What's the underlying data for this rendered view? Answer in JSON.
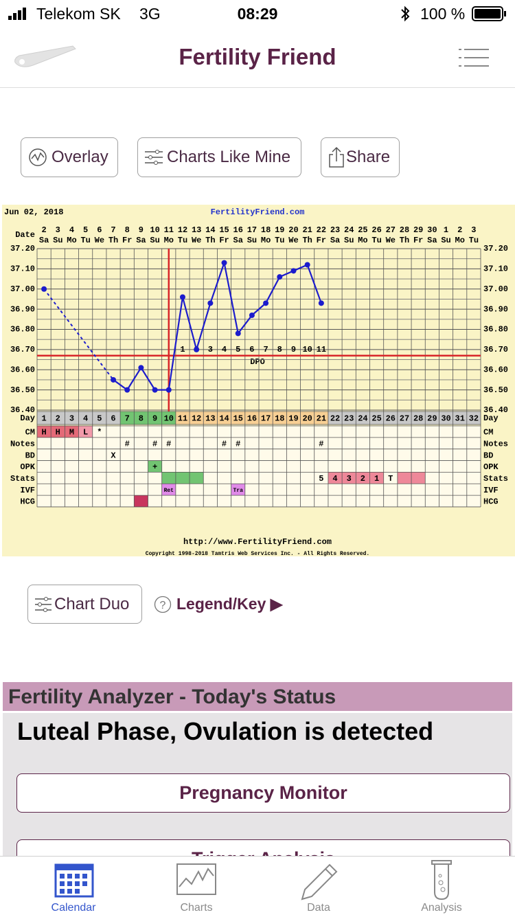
{
  "status_bar": {
    "carrier": "Telekom SK",
    "network": "3G",
    "time": "08:29",
    "battery": "100 %"
  },
  "header": {
    "title": "Fertility Friend"
  },
  "toolbar": {
    "buttons": [
      "Overlay",
      "Charts Like Mine",
      "Share"
    ]
  },
  "chart_data": {
    "type": "line",
    "date_label": "Jun 02, 2018",
    "site": "FertilityFriend.com",
    "date_row_label": "Date",
    "day_row_label": "Day",
    "categories": [
      1,
      2,
      3,
      4,
      5,
      6,
      7,
      8,
      9,
      10,
      11,
      12,
      13,
      14,
      15,
      16,
      17,
      18,
      19,
      20,
      21,
      22,
      23,
      24,
      25,
      26,
      27,
      28,
      29,
      30,
      31,
      32
    ],
    "dates": [
      2,
      3,
      4,
      5,
      6,
      7,
      8,
      9,
      10,
      11,
      12,
      13,
      14,
      15,
      16,
      17,
      18,
      19,
      20,
      21,
      22,
      23,
      24,
      25,
      26,
      27,
      28,
      29,
      30,
      1,
      2,
      3
    ],
    "weekdays": [
      "Sa",
      "Su",
      "Mo",
      "Tu",
      "We",
      "Th",
      "Fr",
      "Sa",
      "Su",
      "Mo",
      "Tu",
      "We",
      "Th",
      "Fr",
      "Sa",
      "Su",
      "Mo",
      "Tu",
      "We",
      "Th",
      "Fr",
      "Sa",
      "Su",
      "Mo",
      "Tu",
      "We",
      "Th",
      "Fr",
      "Sa",
      "Su",
      "Mo",
      "Tu"
    ],
    "values": [
      37.0,
      null,
      null,
      null,
      null,
      36.55,
      36.5,
      36.61,
      36.5,
      36.5,
      36.96,
      36.7,
      36.93,
      37.13,
      36.78,
      36.87,
      36.93,
      37.06,
      37.09,
      37.12,
      36.93,
      null,
      null,
      null,
      null,
      null,
      null,
      null,
      null,
      null,
      null,
      null
    ],
    "color": "#1c1ccc",
    "ylim": [
      36.4,
      37.2
    ],
    "yticks": [
      {
        "value": 36.4,
        "label": "36.40"
      },
      {
        "value": 36.5,
        "label": "36.50"
      },
      {
        "value": 36.6,
        "label": "36.60"
      },
      {
        "value": 36.7,
        "label": "36.70"
      },
      {
        "value": 36.8,
        "label": "36.80"
      },
      {
        "value": 36.9,
        "label": "36.90"
      },
      {
        "value": 37.0,
        "label": "37.00"
      },
      {
        "value": 37.1,
        "label": "37.10"
      },
      {
        "value": 37.2,
        "label": "37.20"
      }
    ],
    "grid": true,
    "coverline": 36.67,
    "ovulation_day": 10,
    "marker_line_color": "#d8262a",
    "dpo": [
      null,
      null,
      null,
      null,
      null,
      null,
      null,
      null,
      null,
      null,
      1,
      2,
      3,
      4,
      5,
      6,
      7,
      8,
      9,
      10,
      11,
      null,
      null,
      null,
      null,
      null,
      null,
      null,
      null,
      null,
      null,
      null
    ],
    "dpo_label": "DPO",
    "day_colors": [
      "#c8c8c8",
      "#c8c8c8",
      "#c8c8c8",
      "#c8c8c8",
      "#c8c8c8",
      "#c8c8c8",
      "#72c472",
      "#72c472",
      "#72c472",
      "#72c472",
      "#f7cf94",
      "#f7cf94",
      "#f7cf94",
      "#f7cf94",
      "#f7cf94",
      "#f7cf94",
      "#f7cf94",
      "#f7cf94",
      "#f7cf94",
      "#f7cf94",
      "#f7cf94",
      "#c8c8c8",
      "#c8c8c8",
      "#c8c8c8",
      "#c8c8c8",
      "#c8c8c8",
      "#c8c8c8",
      "#c8c8c8",
      "#c8c8c8",
      "#c8c8c8",
      "#c8c8c8",
      "#c8c8c8"
    ],
    "rows": [
      {
        "label": "CM",
        "cells": [
          "H",
          "H",
          "M",
          "L",
          "*",
          null,
          null,
          null,
          null,
          null,
          null,
          null,
          null,
          null,
          null,
          null,
          null,
          null,
          null,
          null,
          null,
          null,
          null,
          null,
          null,
          null,
          null,
          null,
          null,
          null,
          null,
          null
        ],
        "colors": [
          "#e46a78",
          "#e46a78",
          "#e46a78",
          "#f29aaa",
          null,
          null,
          null,
          null,
          null,
          null,
          null,
          null,
          null,
          null,
          null,
          null,
          null,
          null,
          null,
          null,
          null,
          null,
          null,
          null,
          null,
          null,
          null,
          null,
          null,
          null,
          null,
          null
        ]
      },
      {
        "label": "Notes",
        "cells": [
          null,
          null,
          null,
          null,
          null,
          null,
          "#",
          null,
          "#",
          "#",
          null,
          null,
          null,
          "#",
          "#",
          null,
          null,
          null,
          null,
          null,
          "#",
          null,
          null,
          null,
          null,
          null,
          null,
          null,
          null,
          null,
          null,
          null
        ]
      },
      {
        "label": "BD",
        "cells": [
          null,
          null,
          null,
          null,
          null,
          "X",
          null,
          null,
          null,
          null,
          null,
          null,
          null,
          null,
          null,
          null,
          null,
          null,
          null,
          null,
          null,
          null,
          null,
          null,
          null,
          null,
          null,
          null,
          null,
          null,
          null,
          null
        ]
      },
      {
        "label": "OPK",
        "cells": [
          null,
          null,
          null,
          null,
          null,
          null,
          null,
          null,
          "+",
          null,
          null,
          null,
          null,
          null,
          null,
          null,
          null,
          null,
          null,
          null,
          null,
          null,
          null,
          null,
          null,
          null,
          null,
          null,
          null,
          null,
          null,
          null
        ],
        "colors": [
          null,
          null,
          null,
          null,
          null,
          null,
          null,
          null,
          "#72c472",
          null,
          null,
          null,
          null,
          null,
          null,
          null,
          null,
          null,
          null,
          null,
          null,
          null,
          null,
          null,
          null,
          null,
          null,
          null,
          null,
          null,
          null,
          null
        ]
      },
      {
        "label": "Stats",
        "cells": [
          null,
          null,
          null,
          null,
          null,
          null,
          null,
          null,
          null,
          null,
          null,
          null,
          null,
          null,
          null,
          null,
          null,
          null,
          null,
          null,
          "5",
          "4",
          "3",
          "2",
          "1",
          "T",
          null,
          null,
          null,
          null,
          null,
          null
        ],
        "colors": [
          null,
          null,
          null,
          null,
          null,
          null,
          null,
          null,
          null,
          "#72c472",
          "#72c472",
          "#72c472",
          null,
          null,
          null,
          null,
          null,
          null,
          null,
          null,
          null,
          "#ee8899",
          "#ee8899",
          "#ee8899",
          "#ee8899",
          null,
          "#ee8899",
          "#ee8899",
          null,
          null,
          null,
          null
        ]
      },
      {
        "label": "IVF",
        "cells": [
          null,
          null,
          null,
          null,
          null,
          null,
          null,
          null,
          null,
          "Ret",
          null,
          null,
          null,
          null,
          "Tra",
          null,
          null,
          null,
          null,
          null,
          null,
          null,
          null,
          null,
          null,
          null,
          null,
          null,
          null,
          null,
          null,
          null
        ],
        "colors": [
          null,
          null,
          null,
          null,
          null,
          null,
          null,
          null,
          null,
          "#e08ae8",
          null,
          null,
          null,
          null,
          "#e08ae8",
          null,
          null,
          null,
          null,
          null,
          null,
          null,
          null,
          null,
          null,
          null,
          null,
          null,
          null,
          null,
          null,
          null
        ]
      },
      {
        "label": "HCG",
        "cells": [
          null,
          null,
          null,
          null,
          null,
          null,
          null,
          null,
          null,
          null,
          null,
          null,
          null,
          null,
          null,
          null,
          null,
          null,
          null,
          null,
          null,
          null,
          null,
          null,
          null,
          null,
          null,
          null,
          null,
          null,
          null,
          null
        ],
        "colors": [
          null,
          null,
          null,
          null,
          null,
          null,
          null,
          "#c8365e",
          null,
          null,
          null,
          null,
          null,
          null,
          null,
          null,
          null,
          null,
          null,
          null,
          null,
          null,
          null,
          null,
          null,
          null,
          null,
          null,
          null,
          null,
          null,
          null
        ]
      }
    ],
    "footer_url": "http://www.FertilityFriend.com",
    "copyright": "Copyright 1998-2018 Tamtris Web Services Inc. - All Rights Reserved."
  },
  "chart_tools": {
    "chart_duo": "Chart Duo",
    "legend": "Legend/Key ▶"
  },
  "analyzer": {
    "title": "Fertility Analyzer - Today's Status",
    "status": "Luteal Phase, Ovulation is detected",
    "buttons": [
      "Pregnancy Monitor",
      "Trigger Analysis"
    ]
  },
  "tab_bar": {
    "tabs": [
      "Calendar",
      "Charts",
      "Data",
      "Analysis"
    ]
  }
}
